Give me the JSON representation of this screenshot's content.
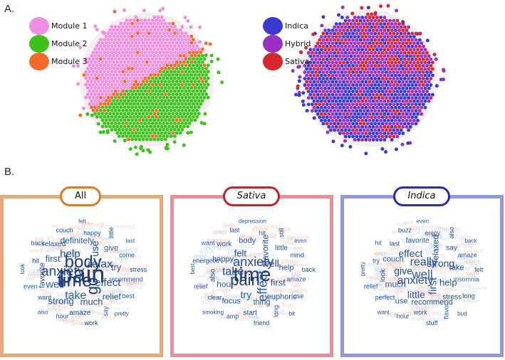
{
  "panel_a": {
    "label": "A."
  },
  "panel_b": {
    "label": "B."
  },
  "legend_modules": [
    {
      "label": "Module 1",
      "color": "#f08ee0"
    },
    {
      "label": "Module 2",
      "color": "#3cc21a"
    },
    {
      "label": "Module 3",
      "color": "#f26a2a"
    }
  ],
  "legend_types": [
    {
      "label": "Indica",
      "color": "#3a3ad0"
    },
    {
      "label": "Hybrid",
      "color": "#9a2fc4"
    },
    {
      "label": "Sativa",
      "color": "#d8262f"
    }
  ],
  "clouds": [
    {
      "title": "All",
      "border_color": "#e8a878",
      "title_color": "#e07a20",
      "words": [
        "pain",
        "time",
        "body",
        "go",
        "anxiety",
        "relax",
        "take",
        "help",
        "effect",
        "well",
        "use",
        "much",
        "first",
        "try",
        "strong",
        "definitely",
        "relief",
        "favorite",
        "give",
        "amaze",
        "relaxed",
        "recommend",
        "want",
        "happy",
        "say",
        "hit",
        "come",
        "hour",
        "couch",
        "best",
        "even",
        "little",
        "work",
        "back",
        "stress",
        "also",
        "felt",
        "pretty",
        "look",
        "last"
      ]
    },
    {
      "title": "Sativa",
      "border_color": "#e8909a",
      "title_color": "#c8202a",
      "words": [
        "time",
        "pain",
        "anxiety",
        "effect",
        "take",
        "well",
        "try",
        "felt",
        "first",
        "hour",
        "favorite",
        "thing",
        "happy",
        "help",
        "focus",
        "body",
        "euphoric",
        "also",
        "little",
        "start",
        "work",
        "amaze",
        "clear",
        "hit",
        "long",
        "energetic",
        "mind",
        "amp",
        "last",
        "use",
        "relief",
        "still",
        "friend",
        "want",
        "back",
        "smoking",
        "depression",
        "bit",
        "best",
        "even"
      ]
    },
    {
      "title": "Indica",
      "border_color": "#9098e0",
      "title_color": "#2a2ab8",
      "words": [
        "well",
        "anxiety",
        "really",
        "first",
        "give",
        "strong",
        "little",
        "effect",
        "help",
        "much",
        "relaxed",
        "recommend",
        "couch",
        "take",
        "use",
        "favorite",
        "stress",
        "look",
        "say",
        "work",
        "last",
        "insomnia",
        "perfect",
        "enjoy",
        "flavor",
        "try",
        "amaze",
        "hour",
        "buzz",
        "long",
        "relief",
        "also",
        "stuff",
        "hit",
        "felt",
        "want",
        "even",
        "bud",
        "pretty",
        "back"
      ]
    }
  ]
}
